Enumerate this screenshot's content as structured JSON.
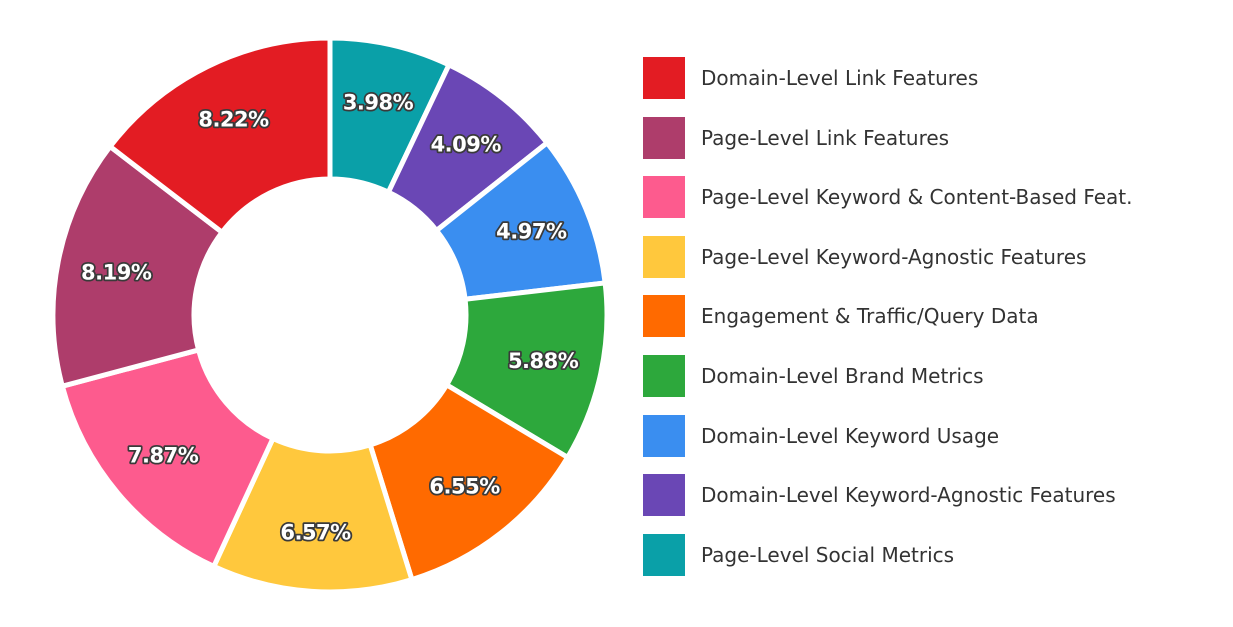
{
  "chart_data": {
    "type": "pie",
    "donut": true,
    "legend_position": "right",
    "categories": [
      "Page-Level Social Metrics",
      "Domain-Level Keyword-Agnostic Features",
      "Domain-Level Keyword Usage",
      "Domain-Level Brand Metrics",
      "Engagement & Traffic/Query Data",
      "Page-Level Keyword-Agnostic Features",
      "Page-Level Keyword & Content-Based Feat.",
      "Page-Level Link Features",
      "Domain-Level Link Features"
    ],
    "values": [
      3.98,
      4.09,
      4.97,
      5.88,
      6.55,
      6.57,
      7.87,
      8.19,
      8.22
    ],
    "value_labels": [
      "3.98%",
      "4.09%",
      "4.97%",
      "5.88%",
      "6.55%",
      "6.57%",
      "7.87%",
      "8.19%",
      "8.22%"
    ],
    "colors": [
      "#0aa0a8",
      "#6a47b5",
      "#3a8ef0",
      "#2da83c",
      "#ff6a00",
      "#ffc83d",
      "#fd5b8e",
      "#ae3d6b",
      "#e31c23"
    ]
  },
  "legend": [
    {
      "label": "Domain-Level Link Features",
      "color": "#e31c23"
    },
    {
      "label": "Page-Level Link Features",
      "color": "#ae3d6b"
    },
    {
      "label": "Page-Level Keyword & Content-Based Feat.",
      "color": "#fd5b8e"
    },
    {
      "label": "Page-Level Keyword-Agnostic Features",
      "color": "#ffc83d"
    },
    {
      "label": "Engagement & Traffic/Query Data",
      "color": "#ff6a00"
    },
    {
      "label": "Domain-Level Brand Metrics",
      "color": "#2da83c"
    },
    {
      "label": "Domain-Level Keyword Usage",
      "color": "#3a8ef0"
    },
    {
      "label": "Domain-Level Keyword-Agnostic Features",
      "color": "#6a47b5"
    },
    {
      "label": "Page-Level Social Metrics",
      "color": "#0aa0a8"
    }
  ]
}
